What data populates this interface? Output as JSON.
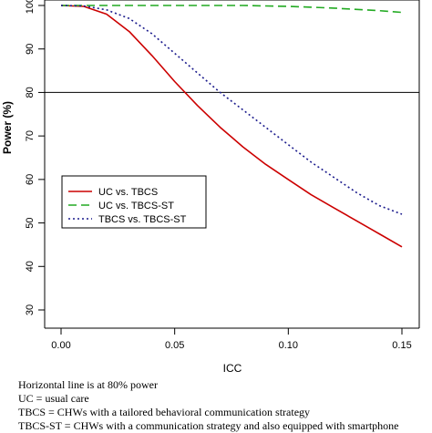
{
  "chart_data": {
    "type": "line",
    "title": "",
    "xlabel": "ICC",
    "ylabel": "Power (%)",
    "xlim": [
      0,
      0.15
    ],
    "ylim": [
      30,
      100
    ],
    "xticks": [
      "0.00",
      "0.05",
      "0.10",
      "0.15"
    ],
    "yticks": [
      "30",
      "40",
      "50",
      "60",
      "70",
      "80",
      "90",
      "100"
    ],
    "reference_line": {
      "y": 80
    },
    "legend_position": "lower-left",
    "grid": false,
    "series": [
      {
        "name": "UC vs. TBCS",
        "color": "#cc0000",
        "style": "solid",
        "x": [
          0,
          0.01,
          0.02,
          0.03,
          0.04,
          0.05,
          0.06,
          0.07,
          0.08,
          0.09,
          0.1,
          0.11,
          0.12,
          0.13,
          0.14,
          0.15
        ],
        "y": [
          100,
          99.8,
          98,
          94,
          88.5,
          82.5,
          77,
          72,
          67.5,
          63.5,
          60,
          56.5,
          53.5,
          50.5,
          47.5,
          44.5
        ]
      },
      {
        "name": "UC vs. TBCS-ST",
        "color": "#22aa22",
        "style": "dashed",
        "x": [
          0,
          0.01,
          0.02,
          0.03,
          0.04,
          0.05,
          0.06,
          0.07,
          0.08,
          0.09,
          0.1,
          0.11,
          0.12,
          0.13,
          0.14,
          0.15
        ],
        "y": [
          100,
          100,
          100,
          100,
          100,
          100,
          100,
          100,
          100,
          99.9,
          99.8,
          99.6,
          99.4,
          99.1,
          98.8,
          98.4
        ]
      },
      {
        "name": "TBCS vs. TBCS-ST",
        "color": "#1a1a8c",
        "style": "dotted",
        "x": [
          0,
          0.01,
          0.02,
          0.03,
          0.04,
          0.05,
          0.06,
          0.07,
          0.08,
          0.09,
          0.1,
          0.11,
          0.12,
          0.13,
          0.14,
          0.15
        ],
        "y": [
          100,
          99.9,
          99,
          97,
          93.5,
          89,
          84.5,
          80,
          76,
          72,
          68,
          64,
          60.5,
          57,
          54,
          52
        ]
      }
    ]
  },
  "notes": [
    "Horizontal line is at 80% power",
    "UC = usual care",
    "TBCS = CHWs with a tailored behavioral communication strategy",
    "TBCS-ST = CHWs with a communication strategy and also equipped with smartphone"
  ]
}
